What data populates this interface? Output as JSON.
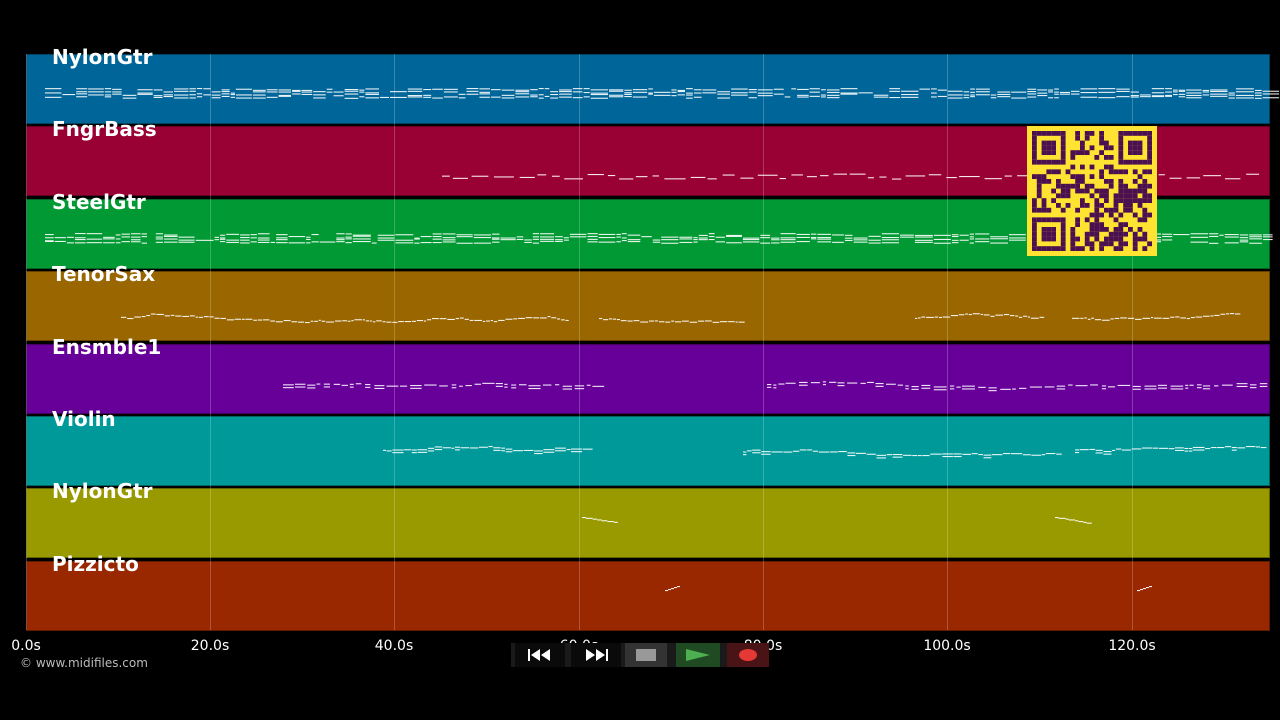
{
  "tracks": [
    {
      "name": "NylonGtr",
      "color": "#006699"
    },
    {
      "name": "FngrBass",
      "color": "#990033"
    },
    {
      "name": "SteelGtr",
      "color": "#009933"
    },
    {
      "name": "TenorSax",
      "color": "#996600"
    },
    {
      "name": "Ensmble1",
      "color": "#660099"
    },
    {
      "name": "Violin",
      "color": "#009999"
    },
    {
      "name": "NylonGtr",
      "color": "#999900"
    },
    {
      "name": "Pizzicto",
      "color": "#992800"
    }
  ],
  "timeline": {
    "ticks": [
      "0.0s",
      "20.0s",
      "40.0s",
      "60.0s",
      "80.0s",
      "100.0s",
      "120.0s"
    ]
  },
  "transport": {
    "rewind_icon": "rewind-icon",
    "fast_forward_icon": "fast-forward-icon",
    "stop_icon": "stop-icon",
    "play_icon": "play-icon",
    "record_icon": "record-icon",
    "play_color": "#4caf50",
    "record_color": "#e53935"
  },
  "footer": {
    "copyright": "© www.midifiles.com"
  },
  "overlay": {
    "qr_color": "#ffe332",
    "qr_module_color": "#4a1050"
  }
}
